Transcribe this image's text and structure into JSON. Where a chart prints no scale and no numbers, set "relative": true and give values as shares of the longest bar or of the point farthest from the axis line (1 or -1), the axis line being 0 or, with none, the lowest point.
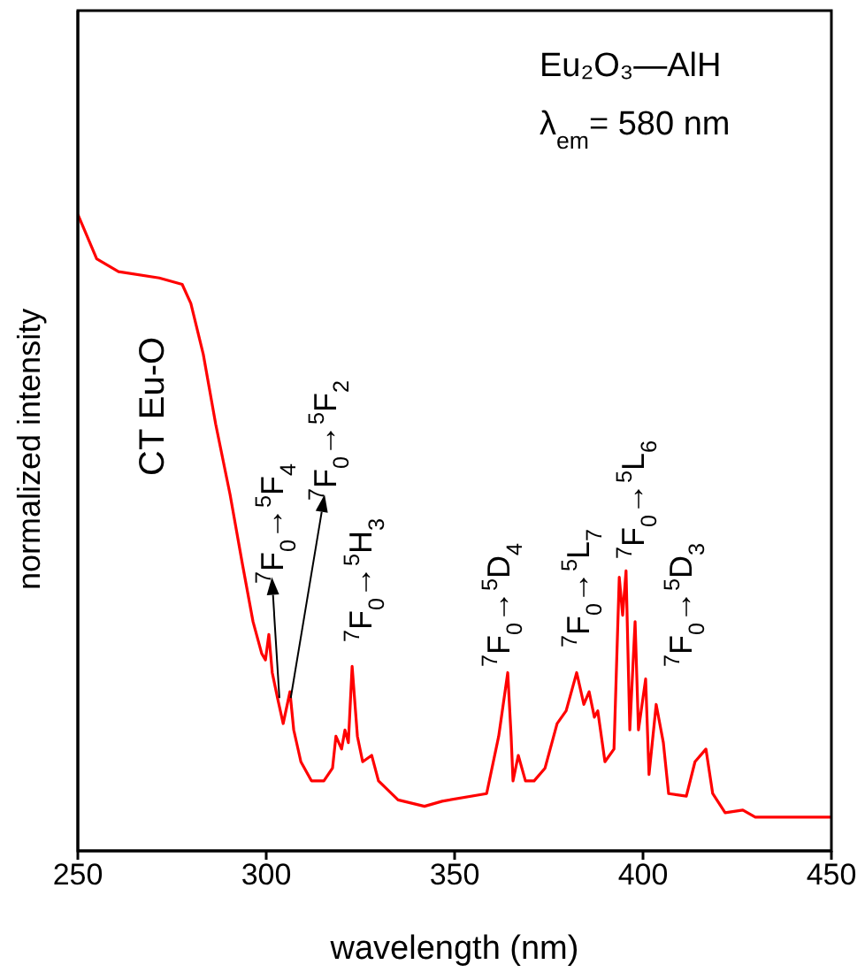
{
  "chart_data": {
    "type": "line",
    "relative": true,
    "xlabel": "wavelength (nm)",
    "ylabel": "normalized intensity",
    "xlim": [
      250,
      450
    ],
    "xticks": [
      250,
      300,
      350,
      400,
      450
    ],
    "x": [
      250,
      255,
      260.8,
      271.6,
      277.7,
      280,
      283.3,
      286.6,
      290.4,
      293.7,
      296.5,
      298.8,
      299.8,
      300.7,
      301.6,
      303,
      304.5,
      306.3,
      307.3,
      309.2,
      312,
      315.3,
      317.6,
      318.5,
      320,
      320.9,
      321.8,
      322.8,
      324.2,
      325.6,
      328,
      329.8,
      335,
      342,
      346.7,
      358.5,
      361.7,
      364.1,
      365,
      365.5,
      366.9,
      368.8,
      371.1,
      374,
      377.2,
      379.6,
      382.4,
      384.3,
      385.7,
      387.1,
      388,
      389.9,
      392.3,
      393.7,
      394.6,
      395.5,
      396.5,
      397.9,
      398.8,
      400.7,
      401.6,
      403.5,
      405.4,
      406.8,
      411.5,
      413.8,
      416.7,
      418.5,
      421.8,
      426.5,
      429.8,
      449,
      450
    ],
    "series": [
      {
        "color": "#ff0000",
        "values": [
          1,
          0.93,
          0.91,
          0.9,
          0.89,
          0.86,
          0.78,
          0.67,
          0.56,
          0.45,
          0.36,
          0.31,
          0.3,
          0.34,
          0.28,
          0.24,
          0.2,
          0.25,
          0.19,
          0.14,
          0.11,
          0.11,
          0.13,
          0.18,
          0.16,
          0.19,
          0.17,
          0.29,
          0.18,
          0.14,
          0.15,
          0.11,
          0.08,
          0.07,
          0.078,
          0.09,
          0.18,
          0.28,
          0.18,
          0.11,
          0.15,
          0.11,
          0.11,
          0.13,
          0.2,
          0.22,
          0.28,
          0.23,
          0.25,
          0.21,
          0.22,
          0.14,
          0.16,
          0.43,
          0.37,
          0.44,
          0.19,
          0.36,
          0.19,
          0.27,
          0.12,
          0.23,
          0.17,
          0.09,
          0.086,
          0.14,
          0.16,
          0.09,
          0.06,
          0.064,
          0.053,
          0.053,
          0.053
        ]
      }
    ],
    "annotations": [
      "Eu₂O₃—AlH",
      "λ$_{em}$= 580 nm",
      "CT Eu-O",
      "$^{7}$F$_{0}$→$^{5}$F$_{4}$",
      "$^{7}$F$_{0}$→$^{5}$F$_{2}$",
      "$^{7}$F$_{0}$→$^{5}$H$_{3}$",
      "$^{7}$F$_{0}$→$^{5}$D$_{4}$",
      "$^{7}$F$_{0}$→$^{5}$L$_{7}$",
      "$^{7}$F$_{0}$→$^{5}$L$_{6}$",
      "$^{7}$F$_{0}$→$^{5}$D$_{3}$"
    ]
  }
}
